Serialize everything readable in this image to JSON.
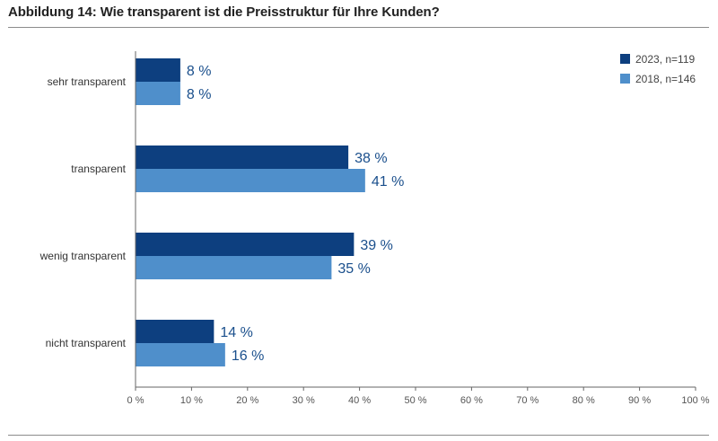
{
  "title": "Abbildung 14: Wie transparent ist die Preisstruktur für Ihre Kunden?",
  "chart_data": {
    "type": "bar",
    "orientation": "horizontal",
    "categories": [
      "sehr transparent",
      "transparent",
      "wenig transparent",
      "nicht transparent"
    ],
    "series": [
      {
        "name": "2023, n=119",
        "color": "#0d3f7f",
        "values": [
          8,
          38,
          39,
          14
        ]
      },
      {
        "name": "2018, n=146",
        "color": "#4f8fcb",
        "values": [
          8,
          41,
          35,
          16
        ]
      }
    ],
    "value_labels": [
      [
        "8 %",
        "38 %",
        "39 %",
        "14 %"
      ],
      [
        "8 %",
        "41 %",
        "35 %",
        "16 %"
      ]
    ],
    "xlim": [
      0,
      100
    ],
    "xticks": [
      0,
      10,
      20,
      30,
      40,
      50,
      60,
      70,
      80,
      90,
      100
    ],
    "xtick_labels": [
      "0 %",
      "10 %",
      "20 %",
      "30 %",
      "40 %",
      "50 %",
      "60 %",
      "70 %",
      "80 %",
      "90 %",
      "100 %"
    ],
    "grid": false,
    "legend_position": "top-right"
  }
}
